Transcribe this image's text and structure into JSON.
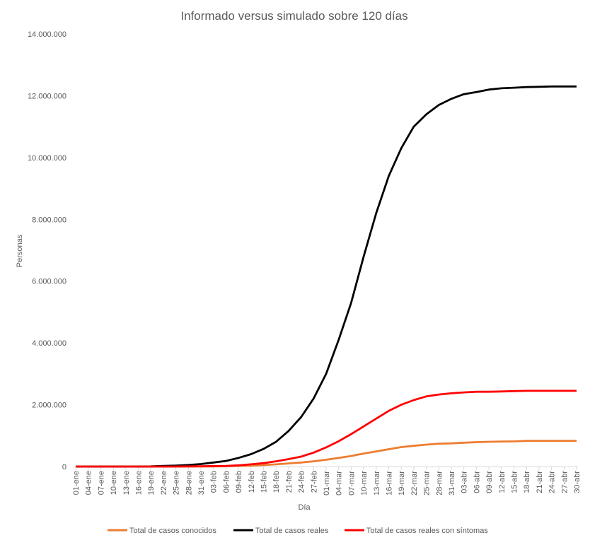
{
  "chart_data": {
    "type": "line",
    "title": "Informado versus simulado sobre 120 días",
    "xlabel": "Día",
    "ylabel": "Personas",
    "ylim": [
      0,
      14000000
    ],
    "yticks": [
      "0",
      "2.000.000",
      "4.000.000",
      "6.000.000",
      "8.000.000",
      "10.000.000",
      "12.000.000",
      "14.000.000"
    ],
    "ytick_values": [
      0,
      2000000,
      4000000,
      6000000,
      8000000,
      10000000,
      12000000,
      14000000
    ],
    "grid": false,
    "legend": "bottom",
    "categories": [
      "01-ene",
      "04-ene",
      "07-ene",
      "10-ene",
      "13-ene",
      "16-ene",
      "19-ene",
      "22-ene",
      "25-ene",
      "28-ene",
      "31-ene",
      "03-feb",
      "06-feb",
      "09-feb",
      "12-feb",
      "15-feb",
      "18-feb",
      "21-feb",
      "24-feb",
      "27-feb",
      "01-mar",
      "04-mar",
      "07-mar",
      "10-mar",
      "13-mar",
      "16-mar",
      "19-mar",
      "22-mar",
      "25-mar",
      "28-mar",
      "31-mar",
      "03-abr",
      "06-abr",
      "09-abr",
      "12-abr",
      "15-abr",
      "18-abr",
      "21-abr",
      "24-abr",
      "27-abr",
      "30-abr"
    ],
    "series": [
      {
        "name": "Total de casos conocidos",
        "color": "#ED7D31",
        "values": [
          0,
          0,
          0,
          0,
          0,
          0,
          0,
          0,
          0,
          0,
          0,
          5000,
          10000,
          20000,
          30000,
          50000,
          70000,
          100000,
          130000,
          170000,
          220000,
          280000,
          340000,
          420000,
          490000,
          560000,
          630000,
          670000,
          710000,
          740000,
          750000,
          770000,
          790000,
          800000,
          810000,
          815000,
          830000,
          830000,
          830000,
          830000,
          830000
        ]
      },
      {
        "name": "Total de casos reales",
        "color": "#000000",
        "values": [
          0,
          0,
          0,
          0,
          0,
          0,
          5000,
          20000,
          30000,
          50000,
          80000,
          130000,
          180000,
          280000,
          400000,
          570000,
          800000,
          1150000,
          1600000,
          2200000,
          3000000,
          4100000,
          5300000,
          6800000,
          8200000,
          9400000,
          10300000,
          11000000,
          11400000,
          11700000,
          11900000,
          12050000,
          12120000,
          12200000,
          12240000,
          12260000,
          12280000,
          12290000,
          12300000,
          12300000,
          12300000
        ]
      },
      {
        "name": "Total de casos reales con síntomas",
        "color": "#FF0000",
        "values": [
          0,
          0,
          0,
          0,
          0,
          0,
          0,
          0,
          0,
          5000,
          10000,
          15000,
          20000,
          40000,
          70000,
          110000,
          170000,
          240000,
          320000,
          450000,
          620000,
          820000,
          1050000,
          1300000,
          1550000,
          1800000,
          2000000,
          2150000,
          2270000,
          2330000,
          2370000,
          2400000,
          2420000,
          2420000,
          2430000,
          2440000,
          2450000,
          2450000,
          2450000,
          2450000,
          2450000
        ]
      }
    ]
  }
}
